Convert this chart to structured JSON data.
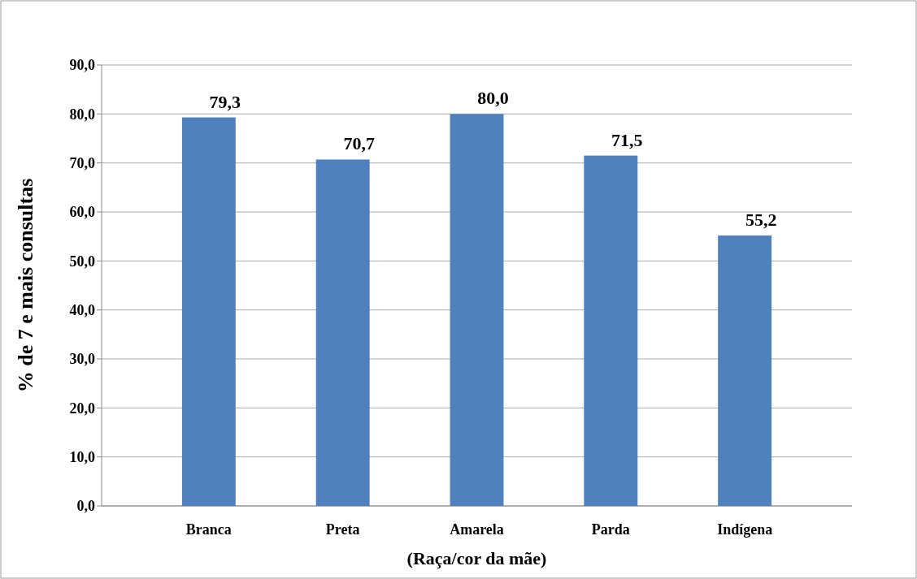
{
  "chart_data": {
    "type": "bar",
    "xlabel": "(Raça/cor da mãe)",
    "ylabel": "% de 7 e mais consultas",
    "categories": [
      "Branca",
      "Preta",
      "Amarela",
      "Parda",
      "Indígena"
    ],
    "values": [
      79.3,
      70.7,
      80.0,
      71.5,
      55.2
    ],
    "value_labels": [
      "79,3",
      "70,7",
      "80,0",
      "71,5",
      "55,2"
    ],
    "color": "#4f81bd",
    "ylim": [
      0,
      90
    ],
    "yticks": [
      {
        "value": 0,
        "label": "0,0"
      },
      {
        "value": 10,
        "label": "10,0"
      },
      {
        "value": 20,
        "label": "20,0"
      },
      {
        "value": 30,
        "label": "30,0"
      },
      {
        "value": 40,
        "label": "40,0"
      },
      {
        "value": 50,
        "label": "50,0"
      },
      {
        "value": 60,
        "label": "60,0"
      },
      {
        "value": 70,
        "label": "70,0"
      },
      {
        "value": 80,
        "label": "80,0"
      },
      {
        "value": 90,
        "label": "90,0"
      }
    ],
    "grid": "y"
  }
}
